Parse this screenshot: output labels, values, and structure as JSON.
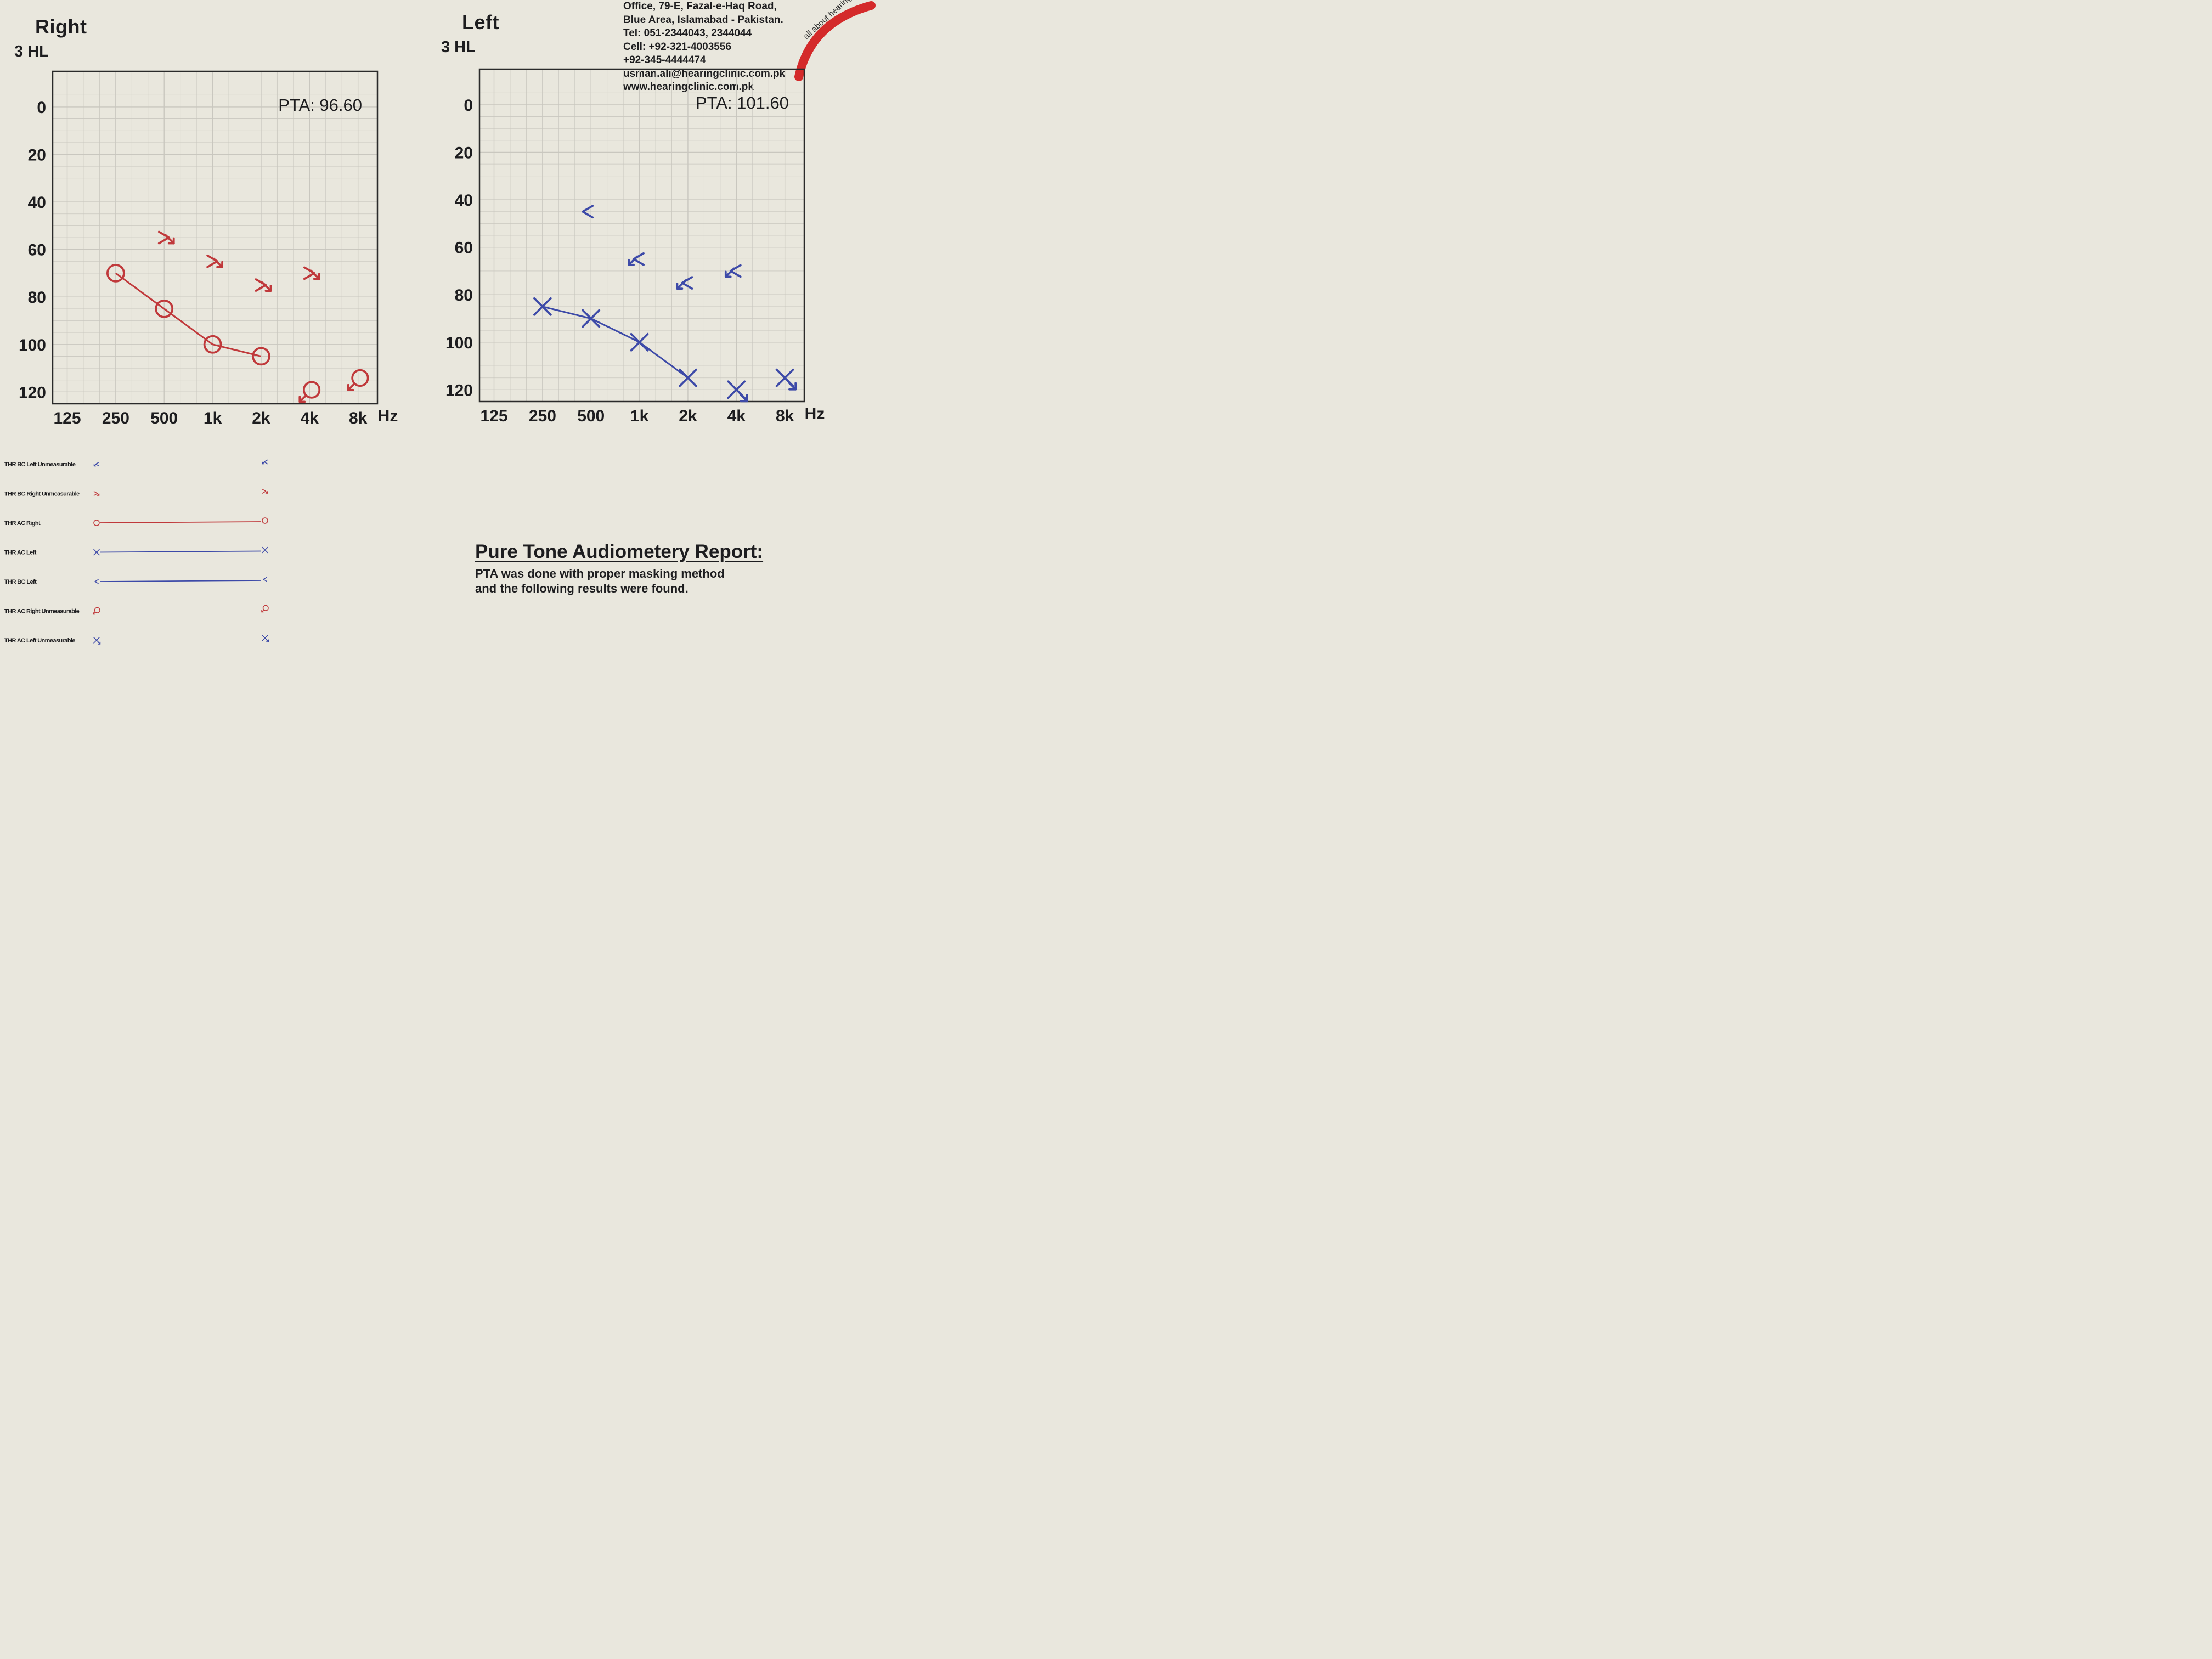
{
  "header": {
    "right_title": "Right",
    "left_title": "Left",
    "right_unit": "3 HL",
    "left_unit": "3 HL"
  },
  "clinic": {
    "address1": "Office, 79-E, Fazal-e-Haq Road,",
    "address2": "Blue Area, Islamabad - Pakistan.",
    "tel": "Tel: 051-2344043, 2344044",
    "cell": "Cell: +92-321-4003556",
    "cell2": "+92-345-4444474",
    "email": "usman.ali@hearingclinic.com.pk",
    "web": "www.hearingclinic.com.pk",
    "slogan": "all about hearing"
  },
  "colors": {
    "right_ear": "#c0393b",
    "left_ear": "#3d4aa8",
    "grid": "#c9c7bf",
    "frame": "#2a2a2a",
    "brand_red": "#d42a2a"
  },
  "chart_data": [
    {
      "type": "line",
      "ear": "Right",
      "frequencies": [
        "125",
        "250",
        "500",
        "1k",
        "2k",
        "4k",
        "8k"
      ],
      "x_unit": "Hz",
      "ylim": [
        -15,
        125
      ],
      "y_ticks": [
        "0",
        "20",
        "40",
        "60",
        "80",
        "100",
        "120"
      ],
      "y_axis": "inverted",
      "grid": true,
      "pta_label": "PTA: 96.60",
      "series": [
        {
          "name": "THR AC Right",
          "symbol": "circle",
          "points": [
            {
              "f": "250",
              "db": 70
            },
            {
              "f": "500",
              "db": 85
            },
            {
              "f": "1k",
              "db": 100
            },
            {
              "f": "2k",
              "db": 105
            }
          ]
        },
        {
          "name": "THR BC Right Unmeasurable",
          "symbol": "bc-right-unmeasurable",
          "points": [
            {
              "f": "500",
              "db": 55
            },
            {
              "f": "1k",
              "db": 65
            },
            {
              "f": "2k",
              "db": 75
            },
            {
              "f": "4k",
              "db": 70
            }
          ]
        },
        {
          "name": "THR AC Right Unmeasurable",
          "symbol": "circle-arrow",
          "points": [
            {
              "f": "4k",
              "db": 120
            },
            {
              "f": "8k",
              "db": 115
            }
          ]
        }
      ]
    },
    {
      "type": "line",
      "ear": "Left",
      "frequencies": [
        "125",
        "250",
        "500",
        "1k",
        "2k",
        "4k",
        "8k"
      ],
      "x_unit": "Hz",
      "ylim": [
        -15,
        125
      ],
      "y_ticks": [
        "0",
        "20",
        "40",
        "60",
        "80",
        "100",
        "120"
      ],
      "y_axis": "inverted",
      "grid": true,
      "pta_label": "PTA: 101.60",
      "series": [
        {
          "name": "THR AC Left",
          "symbol": "cross",
          "points": [
            {
              "f": "250",
              "db": 85
            },
            {
              "f": "500",
              "db": 90
            },
            {
              "f": "1k",
              "db": 100
            },
            {
              "f": "2k",
              "db": 115
            }
          ]
        },
        {
          "name": "THR BC Left",
          "symbol": "bracket-left",
          "points": [
            {
              "f": "500",
              "db": 45
            }
          ]
        },
        {
          "name": "THR BC Left Unmeasurable",
          "symbol": "bc-left-unmeasurable",
          "points": [
            {
              "f": "1k",
              "db": 65
            },
            {
              "f": "2k",
              "db": 75
            },
            {
              "f": "4k",
              "db": 70
            }
          ]
        },
        {
          "name": "THR AC Left Unmeasurable",
          "symbol": "cross-arrow",
          "points": [
            {
              "f": "4k",
              "db": 120
            },
            {
              "f": "8k",
              "db": 115
            }
          ]
        }
      ]
    }
  ],
  "legend": [
    {
      "label": "THR BC Left Unmeasurable",
      "symbol": "bc-left-unmeasurable",
      "color": "#3d4aa8",
      "line": false
    },
    {
      "label": "THR BC Right Unmeasurable",
      "symbol": "bc-right-unmeasurable",
      "color": "#c0393b",
      "line": false
    },
    {
      "label": "THR AC Right",
      "symbol": "circle",
      "color": "#c0393b",
      "line": true
    },
    {
      "label": "THR AC Left",
      "symbol": "cross",
      "color": "#3d4aa8",
      "line": true
    },
    {
      "label": "THR BC Left",
      "symbol": "bracket-left",
      "color": "#3d4aa8",
      "line": true
    },
    {
      "label": "THR AC Right Unmeasurable",
      "symbol": "circle-arrow",
      "color": "#c0393b",
      "line": false
    },
    {
      "label": "THR AC Left Unmeasurable",
      "symbol": "cross-arrow",
      "color": "#3d4aa8",
      "line": false
    }
  ],
  "report": {
    "title": "Pure Tone Audiometery Report:",
    "line1": "PTA was done with proper masking method",
    "line2": "and the following results were found."
  }
}
